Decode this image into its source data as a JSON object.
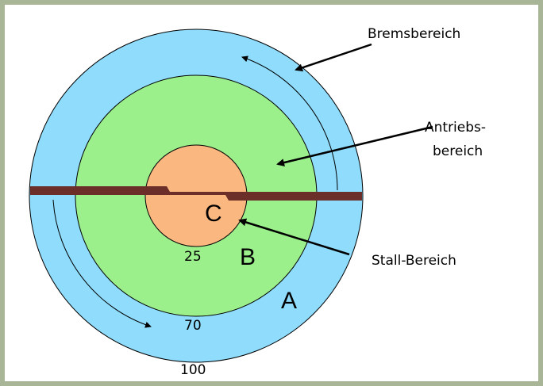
{
  "labels": {
    "brake": "Bremsbereich",
    "drive_line1": "Antriebs-",
    "drive_line2": "bereich",
    "stall": "Stall-Bereich"
  },
  "zones": {
    "outer": "A",
    "middle": "B",
    "inner": "C"
  },
  "radii": {
    "inner": "25",
    "middle": "70",
    "outer": "100"
  }
}
